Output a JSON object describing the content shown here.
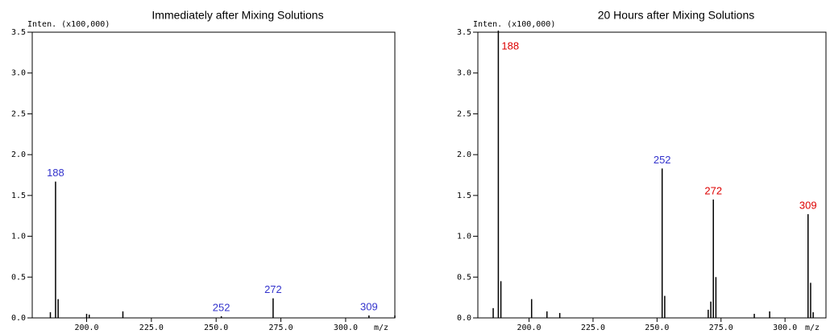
{
  "chart_data": [
    {
      "type": "bar",
      "title": "Immediately after Mixing Solutions",
      "y_label": "Inten. (x100,000)",
      "x_label": "m/z",
      "x": [
        186,
        188,
        189,
        200,
        201,
        214,
        252,
        272,
        309,
        319
      ],
      "values": [
        0.07,
        1.67,
        0.23,
        0.05,
        0.04,
        0.08,
        0.02,
        0.24,
        0.03,
        0.03
      ],
      "color": "#000000",
      "annotations": [
        {
          "text": "188",
          "x": 188,
          "y": 1.67,
          "color": "#3333cc"
        },
        {
          "text": "252",
          "x": 252,
          "y": 0.02,
          "color": "#3333cc"
        },
        {
          "text": "272",
          "x": 272,
          "y": 0.24,
          "color": "#3333cc"
        },
        {
          "text": "309",
          "x": 309,
          "y": 0.03,
          "color": "#3333cc"
        }
      ],
      "xlim": [
        179,
        319
      ],
      "ylim": [
        0,
        3.5
      ],
      "xticks": [
        {
          "value": 200,
          "label": "200.0"
        },
        {
          "value": 225,
          "label": "225.0"
        },
        {
          "value": 250,
          "label": "250.0"
        },
        {
          "value": 275,
          "label": "275.0"
        },
        {
          "value": 300,
          "label": "300.0"
        }
      ],
      "yticks": [
        {
          "value": 0,
          "label": "0.0"
        },
        0.5,
        {
          "value": 1,
          "label": "1.0"
        },
        1.5,
        {
          "value": 2,
          "label": "2.0"
        },
        2.5,
        {
          "value": 3,
          "label": "3.0"
        },
        3.5
      ]
    },
    {
      "type": "bar",
      "title": "20 Hours after Mixing Solutions",
      "y_label": "Inten. (x100,000)",
      "x_label": "m/z",
      "x": [
        186,
        188,
        189,
        201,
        207,
        212,
        252,
        253,
        270,
        271,
        272,
        273,
        288,
        294,
        309,
        310,
        311
      ],
      "values": [
        0.12,
        3.52,
        0.45,
        0.23,
        0.08,
        0.06,
        1.83,
        0.27,
        0.1,
        0.2,
        1.45,
        0.5,
        0.05,
        0.08,
        1.27,
        0.43,
        0.07
      ],
      "color": "#000000",
      "annotations": [
        {
          "text": "188",
          "x": 188,
          "y": 3.52,
          "color": "#dd0000"
        },
        {
          "text": "252",
          "x": 252,
          "y": 1.83,
          "color": "#3333cc"
        },
        {
          "text": "272",
          "x": 272,
          "y": 1.45,
          "color": "#dd0000"
        },
        {
          "text": "309",
          "x": 309,
          "y": 1.27,
          "color": "#dd0000"
        }
      ],
      "xlim": [
        180,
        316
      ],
      "ylim": [
        0,
        3.5
      ],
      "xticks": [
        {
          "value": 200,
          "label": "200.0"
        },
        {
          "value": 225,
          "label": "225.0"
        },
        {
          "value": 250,
          "label": "250.0"
        },
        {
          "value": 275,
          "label": "275.0"
        },
        {
          "value": 300,
          "label": "300.0"
        }
      ],
      "yticks": [
        {
          "value": 0,
          "label": "0.0"
        },
        0.5,
        {
          "value": 1,
          "label": "1.0"
        },
        1.5,
        {
          "value": 2,
          "label": "2.0"
        },
        2.5,
        {
          "value": 3,
          "label": "3.0"
        },
        3.5
      ]
    }
  ]
}
